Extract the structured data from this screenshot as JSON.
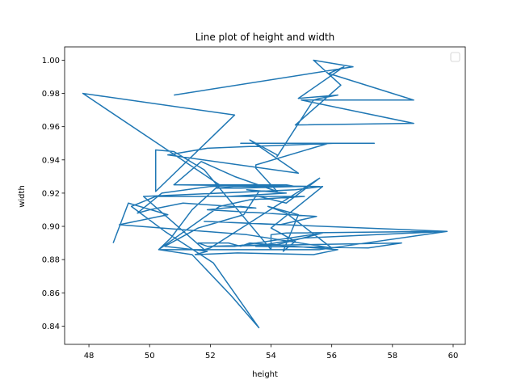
{
  "chart_data": {
    "type": "line",
    "title": "Line plot of height and width",
    "xlabel": "height",
    "ylabel": "width",
    "xlim": [
      47.2,
      60.4
    ],
    "ylim": [
      0.829,
      1.008
    ],
    "xticks": [
      48,
      50,
      52,
      54,
      56,
      58,
      60
    ],
    "yticks": [
      0.84,
      0.86,
      0.88,
      0.9,
      0.92,
      0.94,
      0.96,
      0.98,
      1.0
    ],
    "xtick_labels": [
      "48",
      "50",
      "52",
      "54",
      "56",
      "58",
      "60"
    ],
    "ytick_labels": [
      "0.84",
      "0.86",
      "0.88",
      "0.90",
      "0.92",
      "0.94",
      "0.96",
      "0.98",
      "1.00"
    ],
    "grid": false,
    "legend": {
      "placement": "top-right",
      "entries": []
    },
    "line_color": "#1f77b4",
    "series": [
      {
        "x": [
          50.8,
          56.7,
          55.4,
          56.3,
          54.8,
          58.7,
          55.0,
          58.7,
          55.9,
          56.4,
          54.9,
          56.2,
          55.6,
          55.4,
          54.2,
          54.2,
          53.3,
          54.9,
          50.6,
          51.9,
          53.2,
          56.1,
          53.0,
          55.2,
          54.4,
          57.4,
          56.7,
          55.9,
          53.5,
          53.5,
          54.2,
          52.8,
          51.7,
          50.8,
          50.8,
          54.5,
          54.8,
          53.0,
          52.2,
          52.8,
          54.0,
          55.6,
          50.8,
          51.3,
          53.6,
          53.2,
          52.0,
          50.4,
          49.6,
          50.0,
          51.1,
          53.5,
          53.0,
          51.9,
          53.8,
          55.5,
          54.3,
          51.8,
          55.7,
          59.8,
          55.1,
          53.5,
          57.2,
          58.3,
          52.0,
          52.8,
          55.7,
          54.2,
          51.9,
          51.6,
          52.6,
          53.0,
          53.3,
          56.2,
          55.4,
          52.9,
          51.5,
          51.9,
          50.5,
          51.6,
          53.1,
          53.6,
          53.2,
          54.5,
          52.6,
          55.1,
          53.3,
          52.3,
          50.3,
          52.7,
          55.6,
          59.8,
          54.5,
          54.0,
          54.0,
          51.8,
          50.8,
          50.2,
          50.2,
          52.8,
          47.8,
          52.3,
          51.4,
          50.7,
          50.3,
          50.3,
          51.4,
          52.7,
          53.6,
          52.1,
          50.5,
          49.4,
          50.2,
          51.6,
          53.6,
          54.5,
          55.6,
          52.0,
          51.8,
          49.8,
          54.8,
          55.7,
          54.0,
          54.8,
          54.4,
          54.9,
          53.9,
          54.5,
          56.0,
          53.2,
          49.0,
          50.6,
          49.3,
          48.8
        ],
        "y": [
          0.979,
          0.996,
          1.0,
          0.985,
          0.961,
          0.962,
          0.976,
          0.976,
          0.992,
          0.996,
          0.977,
          0.979,
          0.977,
          0.976,
          0.942,
          0.943,
          0.952,
          0.932,
          0.943,
          0.947,
          0.948,
          0.95,
          0.95,
          0.95,
          0.95,
          0.95,
          0.95,
          0.95,
          0.937,
          0.935,
          0.921,
          0.93,
          0.939,
          0.925,
          0.925,
          0.925,
          0.924,
          0.923,
          0.923,
          0.924,
          0.924,
          0.924,
          0.925,
          0.925,
          0.925,
          0.925,
          0.924,
          0.92,
          0.908,
          0.91,
          0.914,
          0.911,
          0.912,
          0.91,
          0.908,
          0.906,
          0.901,
          0.903,
          0.9,
          0.897,
          0.893,
          0.888,
          0.887,
          0.89,
          0.888,
          0.888,
          0.896,
          0.889,
          0.888,
          0.89,
          0.89,
          0.888,
          0.89,
          0.886,
          0.883,
          0.884,
          0.883,
          0.885,
          0.888,
          0.899,
          0.907,
          0.921,
          0.922,
          0.92,
          0.918,
          0.918,
          0.916,
          0.912,
          0.886,
          0.886,
          0.886,
          0.897,
          0.896,
          0.895,
          0.886,
          0.934,
          0.945,
          0.946,
          0.921,
          0.967,
          0.98,
          0.925,
          0.91,
          0.893,
          0.886,
          0.886,
          0.883,
          0.858,
          0.839,
          0.878,
          0.897,
          0.912,
          0.918,
          0.918,
          0.918,
          0.914,
          0.929,
          0.887,
          0.886,
          0.918,
          0.922,
          0.924,
          0.899,
          0.891,
          0.885,
          0.907,
          0.912,
          0.908,
          0.887,
          0.895,
          0.901,
          0.907,
          0.914,
          0.89
        ]
      }
    ]
  }
}
